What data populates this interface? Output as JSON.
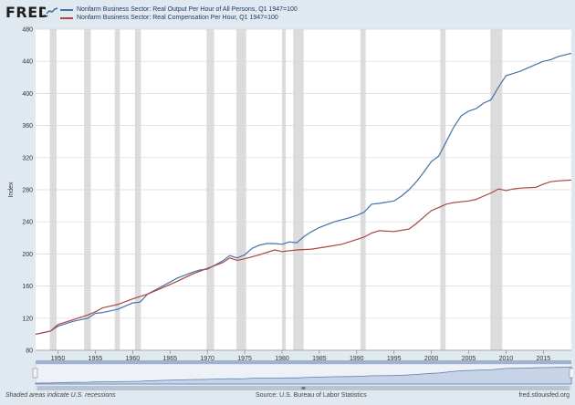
{
  "app": {
    "logo_text": "FRED",
    "logo_mark_icon": "trend-line-icon"
  },
  "footer": {
    "recessions_note": "Shaded areas indicate U.S. recessions",
    "source": "Source: U.S. Bureau of Labor Statistics",
    "site": "fred.stlouisfed.org"
  },
  "colors": {
    "series_output": "#4572a7",
    "series_compensation": "#aa4643",
    "recession": "#dcdcdc",
    "plot_bg": "#ffffff",
    "page_bg": "#e1e9f0",
    "grid": "#d8d8d8",
    "navigator_fill": "#c7d3e6",
    "navigator_line": "#5b7fb6",
    "navigator_track": "#9fb3d1"
  },
  "chart_data": {
    "type": "line",
    "title": "",
    "xlabel": "",
    "ylabel": "Index",
    "xlim": [
      1947.0,
      2018.75
    ],
    "ylim": [
      80,
      480
    ],
    "yticks": [
      80,
      120,
      160,
      200,
      240,
      280,
      320,
      360,
      400,
      440,
      480
    ],
    "xticks": [
      1950,
      1955,
      1960,
      1965,
      1970,
      1975,
      1980,
      1985,
      1990,
      1995,
      2000,
      2005,
      2010,
      2015
    ],
    "grid": true,
    "legend_placement": "top-left",
    "recessions": [
      [
        1948.9,
        1949.8
      ],
      [
        1953.5,
        1954.4
      ],
      [
        1957.6,
        1958.3
      ],
      [
        1960.3,
        1961.1
      ],
      [
        1969.9,
        1970.9
      ],
      [
        1973.9,
        1975.2
      ],
      [
        1980.0,
        1980.5
      ],
      [
        1981.5,
        1982.9
      ],
      [
        1990.5,
        1991.2
      ],
      [
        2001.2,
        2001.9
      ],
      [
        2007.9,
        2009.5
      ]
    ],
    "series": [
      {
        "name": "Nonfarm Business Sector: Real Output Per Hour of All Persons, Q1 1947=100",
        "x": [
          1947,
          1949,
          1950,
          1952,
          1954,
          1955,
          1956,
          1958,
          1960,
          1961,
          1962,
          1964,
          1966,
          1968,
          1969,
          1970,
          1972,
          1973,
          1974,
          1975,
          1976,
          1977,
          1978,
          1979,
          1980,
          1981,
          1982,
          1983,
          1984,
          1985,
          1987,
          1989,
          1990,
          1991,
          1992,
          1993,
          1995,
          1996,
          1997,
          1998,
          1999,
          2000,
          2001,
          2002,
          2003,
          2004,
          2005,
          2006,
          2007,
          2008,
          2009,
          2010,
          2011,
          2012,
          2013,
          2014,
          2015,
          2016,
          2017,
          2018.75
        ],
        "values": [
          100,
          104,
          110,
          116,
          120,
          126,
          127,
          131,
          139,
          140,
          150,
          160,
          170,
          177,
          180,
          181,
          191,
          198,
          195,
          199,
          207,
          211,
          213,
          213,
          212,
          215,
          214,
          222,
          228,
          233,
          240,
          245,
          248,
          252,
          262,
          263,
          266,
          272,
          280,
          290,
          302,
          315,
          322,
          340,
          358,
          372,
          378,
          381,
          388,
          392,
          408,
          422,
          425,
          428,
          432,
          436,
          440,
          442,
          446,
          450
        ]
      },
      {
        "name": "Nonfarm Business Sector: Real Compensation Per Hour, Q1 1947=100",
        "x": [
          1947,
          1949,
          1950,
          1952,
          1954,
          1955,
          1956,
          1958,
          1960,
          1962,
          1964,
          1966,
          1968,
          1970,
          1972,
          1973,
          1974,
          1975,
          1977,
          1979,
          1980,
          1982,
          1984,
          1986,
          1988,
          1990,
          1991,
          1992,
          1993,
          1995,
          1997,
          1998,
          1999,
          2000,
          2001,
          2002,
          2003,
          2005,
          2006,
          2007,
          2008,
          2009,
          2010,
          2011,
          2012,
          2014,
          2015,
          2016,
          2017,
          2018.75
        ],
        "values": [
          100,
          104,
          112,
          118,
          124,
          128,
          133,
          137,
          144,
          150,
          158,
          166,
          175,
          182,
          189,
          195,
          192,
          194,
          199,
          205,
          203,
          205,
          206,
          209,
          212,
          218,
          221,
          226,
          229,
          228,
          231,
          238,
          246,
          254,
          258,
          262,
          264,
          266,
          268,
          272,
          276,
          281,
          279,
          281,
          282,
          283,
          287,
          290,
          291,
          292
        ]
      }
    ]
  }
}
